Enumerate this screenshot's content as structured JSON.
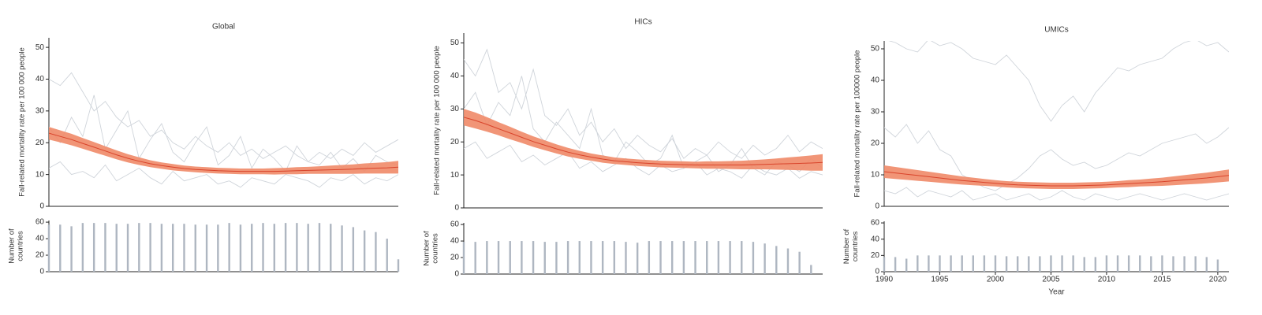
{
  "chart_data": [
    {
      "type": "line",
      "title": "Global",
      "ylabel": "Fall-related mortality rate per 100 000 people",
      "x": [
        1990,
        1991,
        1992,
        1993,
        1994,
        1995,
        1996,
        1997,
        1998,
        1999,
        2000,
        2001,
        2002,
        2003,
        2004,
        2005,
        2006,
        2007,
        2008,
        2009,
        2010,
        2011,
        2012,
        2013,
        2014,
        2015,
        2016,
        2017,
        2018,
        2019,
        2020,
        2021
      ],
      "xlim": [
        1990,
        2021
      ],
      "ylim": [
        0,
        53
      ],
      "yticks": [
        0,
        10,
        20,
        30,
        40,
        50
      ],
      "series": [
        {
          "color": "#cfd4da",
          "values": [
            40,
            38,
            42,
            36,
            30,
            33,
            28,
            25,
            27,
            22,
            24,
            20,
            18,
            22,
            19,
            17,
            20,
            16,
            18,
            15,
            17,
            19,
            16,
            14,
            17,
            15,
            18,
            16,
            20,
            17,
            19,
            21
          ]
        },
        {
          "color": "#cfd4da",
          "values": [
            12,
            14,
            10,
            11,
            9,
            13,
            8,
            10,
            12,
            9,
            7,
            11,
            8,
            9,
            10,
            7,
            8,
            6,
            9,
            8,
            7,
            10,
            9,
            8,
            6,
            9,
            8,
            10,
            7,
            9,
            8,
            10
          ]
        },
        {
          "color": "#cfd4da",
          "values": [
            25,
            20,
            28,
            22,
            35,
            18,
            24,
            30,
            15,
            21,
            26,
            17,
            14,
            20,
            25,
            13,
            16,
            22,
            12,
            18,
            15,
            11,
            19,
            14,
            13,
            17,
            12,
            15,
            11,
            16,
            14,
            13
          ]
        },
        {
          "color": "#d9442b",
          "band_color": "#f08a68",
          "values": [
            23,
            22,
            21,
            19.8,
            18.6,
            17.4,
            16.2,
            15.1,
            14.2,
            13.4,
            12.8,
            12.3,
            11.9,
            11.6,
            11.4,
            11.2,
            11.1,
            11,
            11,
            11,
            11,
            11.1,
            11.2,
            11.3,
            11.4,
            11.5,
            11.6,
            11.7,
            11.9,
            12,
            12.1,
            12.3
          ],
          "errors": [
            2,
            1.9,
            1.8,
            1.7,
            1.6,
            1.5,
            1.4,
            1.3,
            1.2,
            1.1,
            1,
            1,
            0.9,
            0.9,
            0.9,
            0.9,
            0.9,
            0.9,
            0.9,
            0.9,
            1,
            1,
            1.1,
            1.1,
            1.2,
            1.3,
            1.4,
            1.5,
            1.6,
            1.7,
            1.8,
            2
          ]
        }
      ]
    },
    {
      "type": "bar",
      "ylabel": "Number of countries",
      "x": [
        1990,
        1991,
        1992,
        1993,
        1994,
        1995,
        1996,
        1997,
        1998,
        1999,
        2000,
        2001,
        2002,
        2003,
        2004,
        2005,
        2006,
        2007,
        2008,
        2009,
        2010,
        2011,
        2012,
        2013,
        2014,
        2015,
        2016,
        2017,
        2018,
        2019,
        2020,
        2021
      ],
      "xlim": [
        1990,
        2021
      ],
      "ylim": [
        0,
        62
      ],
      "yticks": [
        0,
        20,
        40,
        60
      ],
      "color": "#aeb6c1",
      "values": [
        57,
        57,
        55,
        59,
        59,
        59,
        58,
        58,
        59,
        59,
        58,
        58,
        58,
        57,
        57,
        57,
        59,
        57,
        58,
        59,
        58,
        59,
        59,
        58,
        59,
        58,
        56,
        54,
        50,
        48,
        40,
        15
      ]
    },
    {
      "type": "line",
      "title": "HICs",
      "ylabel": "Fall-related mortality rate per 100 000 people",
      "x": [
        1990,
        1991,
        1992,
        1993,
        1994,
        1995,
        1996,
        1997,
        1998,
        1999,
        2000,
        2001,
        2002,
        2003,
        2004,
        2005,
        2006,
        2007,
        2008,
        2009,
        2010,
        2011,
        2012,
        2013,
        2014,
        2015,
        2016,
        2017,
        2018,
        2019,
        2020,
        2021
      ],
      "xlim": [
        1990,
        2021
      ],
      "ylim": [
        0,
        53
      ],
      "yticks": [
        0,
        10,
        20,
        30,
        40,
        50
      ],
      "series": [
        {
          "color": "#cfd4da",
          "values": [
            45,
            40,
            48,
            35,
            38,
            30,
            42,
            28,
            25,
            30,
            22,
            26,
            20,
            24,
            18,
            22,
            19,
            17,
            21,
            15,
            18,
            16,
            20,
            17,
            15,
            19,
            16,
            18,
            22,
            17,
            20,
            18
          ]
        },
        {
          "color": "#cfd4da",
          "values": [
            18,
            20,
            15,
            17,
            19,
            14,
            16,
            13,
            15,
            17,
            12,
            14,
            11,
            13,
            15,
            12,
            10,
            13,
            11,
            12,
            14,
            10,
            12,
            11,
            9,
            13,
            11,
            10,
            12,
            9,
            11,
            10
          ]
        },
        {
          "color": "#cfd4da",
          "values": [
            30,
            35,
            25,
            32,
            28,
            40,
            24,
            20,
            26,
            22,
            18,
            30,
            16,
            14,
            20,
            17,
            13,
            15,
            22,
            12,
            14,
            16,
            11,
            13,
            18,
            12,
            10,
            14,
            13,
            11,
            15,
            12
          ]
        },
        {
          "color": "#d9442b",
          "band_color": "#f08a68",
          "values": [
            27.5,
            26.5,
            25.3,
            24,
            22.7,
            21.4,
            20.1,
            19,
            17.9,
            16.9,
            16.1,
            15.4,
            14.8,
            14.3,
            14,
            13.7,
            13.5,
            13.3,
            13.2,
            13.1,
            13,
            13,
            13,
            13,
            13,
            13.1,
            13.2,
            13.3,
            13.4,
            13.5,
            13.6,
            13.8
          ],
          "errors": [
            2.5,
            2.4,
            2.2,
            2,
            1.9,
            1.7,
            1.6,
            1.5,
            1.4,
            1.3,
            1.2,
            1.1,
            1.1,
            1,
            1,
            1,
            1,
            1,
            1,
            1,
            1,
            1.1,
            1.1,
            1.2,
            1.3,
            1.4,
            1.5,
            1.7,
            1.9,
            2.1,
            2.3,
            2.5
          ]
        }
      ]
    },
    {
      "type": "bar",
      "ylabel": "Number of countries",
      "x": [
        1990,
        1991,
        1992,
        1993,
        1994,
        1995,
        1996,
        1997,
        1998,
        1999,
        2000,
        2001,
        2002,
        2003,
        2004,
        2005,
        2006,
        2007,
        2008,
        2009,
        2010,
        2011,
        2012,
        2013,
        2014,
        2015,
        2016,
        2017,
        2018,
        2019,
        2020,
        2021
      ],
      "xlim": [
        1990,
        2021
      ],
      "ylim": [
        0,
        62
      ],
      "yticks": [
        0,
        20,
        40,
        60
      ],
      "color": "#aeb6c1",
      "values": [
        39,
        39,
        40,
        40,
        40,
        40,
        40,
        39,
        39,
        40,
        40,
        40,
        40,
        40,
        39,
        38,
        40,
        40,
        40,
        40,
        40,
        40,
        40,
        40,
        40,
        39,
        37,
        34,
        31,
        27,
        11,
        0
      ]
    },
    {
      "type": "line",
      "title": "UMICs",
      "ylabel": "Fall-related mortality rate per 100000 people",
      "x": [
        1990,
        1991,
        1992,
        1993,
        1994,
        1995,
        1996,
        1997,
        1998,
        1999,
        2000,
        2001,
        2002,
        2003,
        2004,
        2005,
        2006,
        2007,
        2008,
        2009,
        2010,
        2011,
        2012,
        2013,
        2014,
        2015,
        2016,
        2017,
        2018,
        2019,
        2020,
        2021
      ],
      "xlim": [
        1990,
        2021
      ],
      "ylim": [
        0,
        52.5
      ],
      "yticks": [
        0,
        10,
        20,
        30,
        40,
        50
      ],
      "series": [
        {
          "color": "#cfd4da",
          "values": [
            53,
            52,
            50,
            49,
            53,
            51,
            52,
            50,
            47,
            46,
            45,
            48,
            44,
            40,
            32,
            27,
            32,
            35,
            30,
            36,
            40,
            44,
            43,
            45,
            46,
            47,
            50,
            52,
            53,
            51,
            52,
            49
          ]
        },
        {
          "color": "#cfd4da",
          "values": [
            25,
            22,
            26,
            20,
            24,
            18,
            16,
            10,
            8,
            6,
            5,
            7,
            9,
            12,
            16,
            18,
            15,
            13,
            14,
            12,
            13,
            15,
            17,
            16,
            18,
            20,
            21,
            22,
            23,
            20,
            22,
            25
          ]
        },
        {
          "color": "#cfd4da",
          "values": [
            5,
            4,
            6,
            3,
            5,
            4,
            3,
            5,
            2,
            3,
            4,
            2,
            3,
            4,
            2,
            3,
            5,
            3,
            2,
            4,
            3,
            2,
            3,
            4,
            3,
            2,
            3,
            4,
            3,
            2,
            3,
            4
          ]
        },
        {
          "color": "#d9442b",
          "band_color": "#f08a68",
          "values": [
            11,
            10.6,
            10.2,
            9.8,
            9.4,
            9,
            8.6,
            8.2,
            7.9,
            7.6,
            7.3,
            7,
            6.8,
            6.7,
            6.6,
            6.5,
            6.5,
            6.5,
            6.6,
            6.7,
            6.8,
            7,
            7.2,
            7.4,
            7.6,
            7.8,
            8.1,
            8.4,
            8.7,
            9,
            9.4,
            9.8
          ],
          "errors": [
            2,
            1.9,
            1.8,
            1.7,
            1.6,
            1.5,
            1.4,
            1.3,
            1.2,
            1.1,
            1,
            1,
            1,
            1,
            1,
            1,
            1,
            1,
            1,
            1,
            1,
            1,
            1.1,
            1.1,
            1.2,
            1.3,
            1.4,
            1.5,
            1.6,
            1.7,
            1.8,
            1.9
          ]
        }
      ]
    },
    {
      "type": "bar",
      "ylabel": "Number of countries",
      "xlabel": "Year",
      "x": [
        1990,
        1991,
        1992,
        1993,
        1994,
        1995,
        1996,
        1997,
        1998,
        1999,
        2000,
        2001,
        2002,
        2003,
        2004,
        2005,
        2006,
        2007,
        2008,
        2009,
        2010,
        2011,
        2012,
        2013,
        2014,
        2015,
        2016,
        2017,
        2018,
        2019,
        2020,
        2021
      ],
      "xlim": [
        1990,
        2021
      ],
      "ylim": [
        0,
        62
      ],
      "yticks": [
        0,
        20,
        40,
        60
      ],
      "xticks": [
        1990,
        1995,
        2000,
        2005,
        2010,
        2015,
        2020
      ],
      "color": "#aeb6c1",
      "values": [
        18,
        18,
        16,
        20,
        20,
        20,
        20,
        20,
        20,
        20,
        20,
        19,
        19,
        19,
        19,
        20,
        20,
        20,
        18,
        18,
        20,
        20,
        20,
        20,
        19,
        20,
        19,
        19,
        19,
        18,
        15,
        0
      ]
    }
  ]
}
